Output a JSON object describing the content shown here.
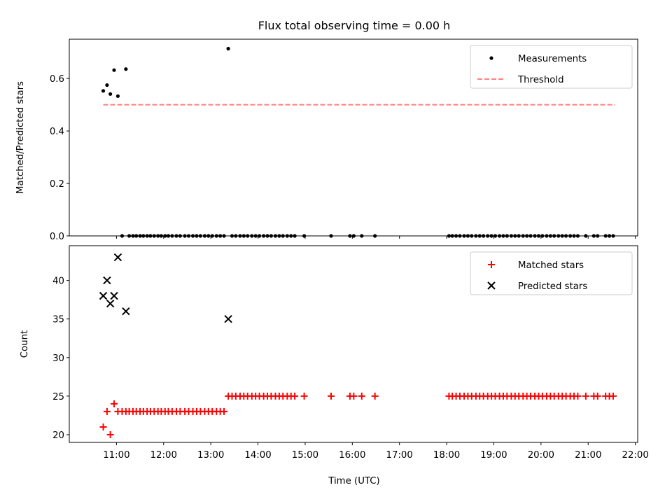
{
  "title": "Flux total observing time = 0.00 h",
  "xlabel": "Time (UTC)",
  "x_ticks": [
    "11:00",
    "12:00",
    "13:00",
    "14:00",
    "15:00",
    "16:00",
    "17:00",
    "18:00",
    "19:00",
    "20:00",
    "21:00",
    "22:00"
  ],
  "chart_data": [
    {
      "type": "scatter",
      "ylabel": "Matched/Predicted stars",
      "xlim": [
        10.0,
        22.05
      ],
      "ylim": [
        0,
        0.75
      ],
      "y_ticks": [
        "0.0",
        "0.2",
        "0.4",
        "0.6"
      ],
      "legend_position": "top-right",
      "series": [
        {
          "name": "Measurements",
          "kind": "points",
          "color": "#000000",
          "points": [
            [
              10.72,
              0.553
            ],
            [
              10.8,
              0.575
            ],
            [
              10.87,
              0.541
            ],
            [
              10.95,
              0.632
            ],
            [
              11.03,
              0.533
            ],
            [
              11.2,
              0.636
            ],
            [
              13.37,
              0.714
            ],
            [
              11.12,
              0
            ],
            [
              11.27,
              0
            ],
            [
              11.35,
              0
            ],
            [
              11.42,
              0
            ],
            [
              11.5,
              0
            ],
            [
              11.57,
              0
            ],
            [
              11.65,
              0
            ],
            [
              11.72,
              0
            ],
            [
              11.8,
              0
            ],
            [
              11.88,
              0
            ],
            [
              11.95,
              0
            ],
            [
              12.03,
              0
            ],
            [
              12.1,
              0
            ],
            [
              12.18,
              0
            ],
            [
              12.27,
              0
            ],
            [
              12.35,
              0
            ],
            [
              12.45,
              0
            ],
            [
              12.53,
              0
            ],
            [
              12.62,
              0
            ],
            [
              12.7,
              0
            ],
            [
              12.78,
              0
            ],
            [
              12.87,
              0
            ],
            [
              12.95,
              0
            ],
            [
              13.03,
              0
            ],
            [
              13.12,
              0
            ],
            [
              13.2,
              0
            ],
            [
              13.28,
              0
            ],
            [
              13.45,
              0
            ],
            [
              13.53,
              0
            ],
            [
              13.62,
              0
            ],
            [
              13.7,
              0
            ],
            [
              13.78,
              0
            ],
            [
              13.87,
              0
            ],
            [
              13.95,
              0
            ],
            [
              14.03,
              0
            ],
            [
              14.12,
              0
            ],
            [
              14.2,
              0
            ],
            [
              14.28,
              0
            ],
            [
              14.37,
              0
            ],
            [
              14.45,
              0
            ],
            [
              14.53,
              0
            ],
            [
              14.62,
              0
            ],
            [
              14.7,
              0
            ],
            [
              14.78,
              0
            ],
            [
              14.98,
              0
            ],
            [
              15.55,
              0
            ],
            [
              15.95,
              0
            ],
            [
              16.03,
              0
            ],
            [
              16.2,
              0
            ],
            [
              16.48,
              0
            ],
            [
              18.05,
              0
            ],
            [
              18.12,
              0
            ],
            [
              18.2,
              0
            ],
            [
              18.28,
              0
            ],
            [
              18.37,
              0
            ],
            [
              18.45,
              0
            ],
            [
              18.53,
              0
            ],
            [
              18.62,
              0
            ],
            [
              18.7,
              0
            ],
            [
              18.78,
              0
            ],
            [
              18.87,
              0
            ],
            [
              18.95,
              0
            ],
            [
              19.03,
              0
            ],
            [
              19.12,
              0
            ],
            [
              19.2,
              0
            ],
            [
              19.28,
              0
            ],
            [
              19.37,
              0
            ],
            [
              19.45,
              0
            ],
            [
              19.53,
              0
            ],
            [
              19.62,
              0
            ],
            [
              19.7,
              0
            ],
            [
              19.78,
              0
            ],
            [
              19.87,
              0
            ],
            [
              19.95,
              0
            ],
            [
              20.03,
              0
            ],
            [
              20.12,
              0
            ],
            [
              20.2,
              0
            ],
            [
              20.28,
              0
            ],
            [
              20.37,
              0
            ],
            [
              20.45,
              0
            ],
            [
              20.53,
              0
            ],
            [
              20.62,
              0
            ],
            [
              20.7,
              0
            ],
            [
              20.78,
              0
            ],
            [
              20.95,
              0
            ],
            [
              21.12,
              0
            ],
            [
              21.2,
              0
            ],
            [
              21.37,
              0
            ],
            [
              21.45,
              0
            ],
            [
              21.53,
              0
            ]
          ]
        },
        {
          "name": "Threshold",
          "kind": "dashed-line",
          "color": "#ff7f7f",
          "x": [
            10.72,
            21.57
          ],
          "y": [
            0.5,
            0.5
          ]
        }
      ]
    },
    {
      "type": "scatter",
      "ylabel": "Count",
      "xlim": [
        10.0,
        22.05
      ],
      "ylim": [
        19,
        44.5
      ],
      "y_ticks": [
        "20",
        "25",
        "30",
        "35",
        "40"
      ],
      "legend_position": "top-right",
      "series": [
        {
          "name": "Matched stars",
          "kind": "plus",
          "color": "#ff0000",
          "points": [
            [
              10.72,
              21
            ],
            [
              10.8,
              23
            ],
            [
              10.87,
              20
            ],
            [
              10.95,
              24
            ],
            [
              11.03,
              23
            ],
            [
              11.12,
              23
            ],
            [
              11.2,
              23
            ],
            [
              11.27,
              23
            ],
            [
              11.35,
              23
            ],
            [
              11.42,
              23
            ],
            [
              11.5,
              23
            ],
            [
              11.57,
              23
            ],
            [
              11.65,
              23
            ],
            [
              11.72,
              23
            ],
            [
              11.8,
              23
            ],
            [
              11.88,
              23
            ],
            [
              11.95,
              23
            ],
            [
              12.03,
              23
            ],
            [
              12.1,
              23
            ],
            [
              12.18,
              23
            ],
            [
              12.27,
              23
            ],
            [
              12.35,
              23
            ],
            [
              12.45,
              23
            ],
            [
              12.53,
              23
            ],
            [
              12.62,
              23
            ],
            [
              12.7,
              23
            ],
            [
              12.78,
              23
            ],
            [
              12.87,
              23
            ],
            [
              12.95,
              23
            ],
            [
              13.03,
              23
            ],
            [
              13.12,
              23
            ],
            [
              13.2,
              23
            ],
            [
              13.28,
              23
            ],
            [
              13.37,
              25
            ],
            [
              13.45,
              25
            ],
            [
              13.53,
              25
            ],
            [
              13.62,
              25
            ],
            [
              13.7,
              25
            ],
            [
              13.78,
              25
            ],
            [
              13.87,
              25
            ],
            [
              13.95,
              25
            ],
            [
              14.03,
              25
            ],
            [
              14.12,
              25
            ],
            [
              14.2,
              25
            ],
            [
              14.28,
              25
            ],
            [
              14.37,
              25
            ],
            [
              14.45,
              25
            ],
            [
              14.53,
              25
            ],
            [
              14.62,
              25
            ],
            [
              14.7,
              25
            ],
            [
              14.78,
              25
            ],
            [
              14.98,
              25
            ],
            [
              15.55,
              25
            ],
            [
              15.95,
              25
            ],
            [
              16.03,
              25
            ],
            [
              16.2,
              25
            ],
            [
              16.48,
              25
            ],
            [
              18.05,
              25
            ],
            [
              18.12,
              25
            ],
            [
              18.2,
              25
            ],
            [
              18.28,
              25
            ],
            [
              18.37,
              25
            ],
            [
              18.45,
              25
            ],
            [
              18.53,
              25
            ],
            [
              18.62,
              25
            ],
            [
              18.7,
              25
            ],
            [
              18.78,
              25
            ],
            [
              18.87,
              25
            ],
            [
              18.95,
              25
            ],
            [
              19.03,
              25
            ],
            [
              19.12,
              25
            ],
            [
              19.2,
              25
            ],
            [
              19.28,
              25
            ],
            [
              19.37,
              25
            ],
            [
              19.45,
              25
            ],
            [
              19.53,
              25
            ],
            [
              19.62,
              25
            ],
            [
              19.7,
              25
            ],
            [
              19.78,
              25
            ],
            [
              19.87,
              25
            ],
            [
              19.95,
              25
            ],
            [
              20.03,
              25
            ],
            [
              20.12,
              25
            ],
            [
              20.2,
              25
            ],
            [
              20.28,
              25
            ],
            [
              20.37,
              25
            ],
            [
              20.45,
              25
            ],
            [
              20.53,
              25
            ],
            [
              20.62,
              25
            ],
            [
              20.7,
              25
            ],
            [
              20.78,
              25
            ],
            [
              20.95,
              25
            ],
            [
              21.12,
              25
            ],
            [
              21.2,
              25
            ],
            [
              21.37,
              25
            ],
            [
              21.45,
              25
            ],
            [
              21.53,
              25
            ]
          ]
        },
        {
          "name": "Predicted stars",
          "kind": "cross",
          "color": "#000000",
          "points": [
            [
              10.72,
              38
            ],
            [
              10.8,
              40
            ],
            [
              10.87,
              37
            ],
            [
              10.95,
              38
            ],
            [
              11.03,
              43
            ],
            [
              11.2,
              36
            ],
            [
              13.37,
              35
            ]
          ]
        }
      ]
    }
  ]
}
